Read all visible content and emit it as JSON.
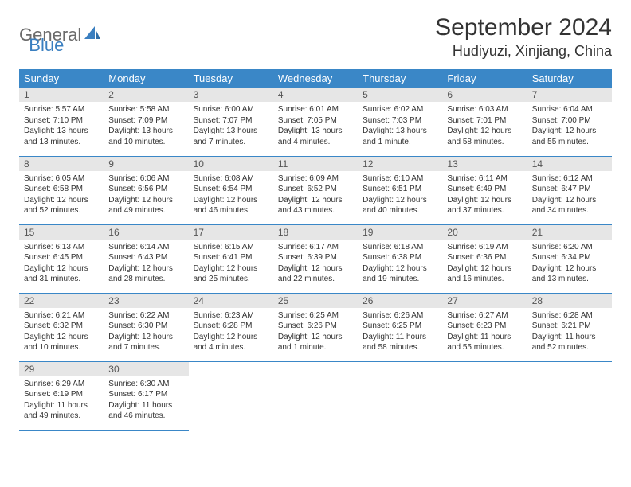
{
  "logo": {
    "text1": "General",
    "text2": "Blue"
  },
  "title": "September 2024",
  "location": "Hudiyuzi, Xinjiang, China",
  "colors": {
    "header_bg": "#3a87c7",
    "header_text": "#ffffff",
    "daynum_bg": "#e6e6e6",
    "border": "#3a87c7",
    "body_text": "#333333",
    "logo_gray": "#6b6b6b",
    "logo_blue": "#3a7fc0"
  },
  "day_headers": [
    "Sunday",
    "Monday",
    "Tuesday",
    "Wednesday",
    "Thursday",
    "Friday",
    "Saturday"
  ],
  "weeks": [
    [
      {
        "num": "1",
        "sunrise": "Sunrise: 5:57 AM",
        "sunset": "Sunset: 7:10 PM",
        "daylight1": "Daylight: 13 hours",
        "daylight2": "and 13 minutes."
      },
      {
        "num": "2",
        "sunrise": "Sunrise: 5:58 AM",
        "sunset": "Sunset: 7:09 PM",
        "daylight1": "Daylight: 13 hours",
        "daylight2": "and 10 minutes."
      },
      {
        "num": "3",
        "sunrise": "Sunrise: 6:00 AM",
        "sunset": "Sunset: 7:07 PM",
        "daylight1": "Daylight: 13 hours",
        "daylight2": "and 7 minutes."
      },
      {
        "num": "4",
        "sunrise": "Sunrise: 6:01 AM",
        "sunset": "Sunset: 7:05 PM",
        "daylight1": "Daylight: 13 hours",
        "daylight2": "and 4 minutes."
      },
      {
        "num": "5",
        "sunrise": "Sunrise: 6:02 AM",
        "sunset": "Sunset: 7:03 PM",
        "daylight1": "Daylight: 13 hours",
        "daylight2": "and 1 minute."
      },
      {
        "num": "6",
        "sunrise": "Sunrise: 6:03 AM",
        "sunset": "Sunset: 7:01 PM",
        "daylight1": "Daylight: 12 hours",
        "daylight2": "and 58 minutes."
      },
      {
        "num": "7",
        "sunrise": "Sunrise: 6:04 AM",
        "sunset": "Sunset: 7:00 PM",
        "daylight1": "Daylight: 12 hours",
        "daylight2": "and 55 minutes."
      }
    ],
    [
      {
        "num": "8",
        "sunrise": "Sunrise: 6:05 AM",
        "sunset": "Sunset: 6:58 PM",
        "daylight1": "Daylight: 12 hours",
        "daylight2": "and 52 minutes."
      },
      {
        "num": "9",
        "sunrise": "Sunrise: 6:06 AM",
        "sunset": "Sunset: 6:56 PM",
        "daylight1": "Daylight: 12 hours",
        "daylight2": "and 49 minutes."
      },
      {
        "num": "10",
        "sunrise": "Sunrise: 6:08 AM",
        "sunset": "Sunset: 6:54 PM",
        "daylight1": "Daylight: 12 hours",
        "daylight2": "and 46 minutes."
      },
      {
        "num": "11",
        "sunrise": "Sunrise: 6:09 AM",
        "sunset": "Sunset: 6:52 PM",
        "daylight1": "Daylight: 12 hours",
        "daylight2": "and 43 minutes."
      },
      {
        "num": "12",
        "sunrise": "Sunrise: 6:10 AM",
        "sunset": "Sunset: 6:51 PM",
        "daylight1": "Daylight: 12 hours",
        "daylight2": "and 40 minutes."
      },
      {
        "num": "13",
        "sunrise": "Sunrise: 6:11 AM",
        "sunset": "Sunset: 6:49 PM",
        "daylight1": "Daylight: 12 hours",
        "daylight2": "and 37 minutes."
      },
      {
        "num": "14",
        "sunrise": "Sunrise: 6:12 AM",
        "sunset": "Sunset: 6:47 PM",
        "daylight1": "Daylight: 12 hours",
        "daylight2": "and 34 minutes."
      }
    ],
    [
      {
        "num": "15",
        "sunrise": "Sunrise: 6:13 AM",
        "sunset": "Sunset: 6:45 PM",
        "daylight1": "Daylight: 12 hours",
        "daylight2": "and 31 minutes."
      },
      {
        "num": "16",
        "sunrise": "Sunrise: 6:14 AM",
        "sunset": "Sunset: 6:43 PM",
        "daylight1": "Daylight: 12 hours",
        "daylight2": "and 28 minutes."
      },
      {
        "num": "17",
        "sunrise": "Sunrise: 6:15 AM",
        "sunset": "Sunset: 6:41 PM",
        "daylight1": "Daylight: 12 hours",
        "daylight2": "and 25 minutes."
      },
      {
        "num": "18",
        "sunrise": "Sunrise: 6:17 AM",
        "sunset": "Sunset: 6:39 PM",
        "daylight1": "Daylight: 12 hours",
        "daylight2": "and 22 minutes."
      },
      {
        "num": "19",
        "sunrise": "Sunrise: 6:18 AM",
        "sunset": "Sunset: 6:38 PM",
        "daylight1": "Daylight: 12 hours",
        "daylight2": "and 19 minutes."
      },
      {
        "num": "20",
        "sunrise": "Sunrise: 6:19 AM",
        "sunset": "Sunset: 6:36 PM",
        "daylight1": "Daylight: 12 hours",
        "daylight2": "and 16 minutes."
      },
      {
        "num": "21",
        "sunrise": "Sunrise: 6:20 AM",
        "sunset": "Sunset: 6:34 PM",
        "daylight1": "Daylight: 12 hours",
        "daylight2": "and 13 minutes."
      }
    ],
    [
      {
        "num": "22",
        "sunrise": "Sunrise: 6:21 AM",
        "sunset": "Sunset: 6:32 PM",
        "daylight1": "Daylight: 12 hours",
        "daylight2": "and 10 minutes."
      },
      {
        "num": "23",
        "sunrise": "Sunrise: 6:22 AM",
        "sunset": "Sunset: 6:30 PM",
        "daylight1": "Daylight: 12 hours",
        "daylight2": "and 7 minutes."
      },
      {
        "num": "24",
        "sunrise": "Sunrise: 6:23 AM",
        "sunset": "Sunset: 6:28 PM",
        "daylight1": "Daylight: 12 hours",
        "daylight2": "and 4 minutes."
      },
      {
        "num": "25",
        "sunrise": "Sunrise: 6:25 AM",
        "sunset": "Sunset: 6:26 PM",
        "daylight1": "Daylight: 12 hours",
        "daylight2": "and 1 minute."
      },
      {
        "num": "26",
        "sunrise": "Sunrise: 6:26 AM",
        "sunset": "Sunset: 6:25 PM",
        "daylight1": "Daylight: 11 hours",
        "daylight2": "and 58 minutes."
      },
      {
        "num": "27",
        "sunrise": "Sunrise: 6:27 AM",
        "sunset": "Sunset: 6:23 PM",
        "daylight1": "Daylight: 11 hours",
        "daylight2": "and 55 minutes."
      },
      {
        "num": "28",
        "sunrise": "Sunrise: 6:28 AM",
        "sunset": "Sunset: 6:21 PM",
        "daylight1": "Daylight: 11 hours",
        "daylight2": "and 52 minutes."
      }
    ],
    [
      {
        "num": "29",
        "sunrise": "Sunrise: 6:29 AM",
        "sunset": "Sunset: 6:19 PM",
        "daylight1": "Daylight: 11 hours",
        "daylight2": "and 49 minutes."
      },
      {
        "num": "30",
        "sunrise": "Sunrise: 6:30 AM",
        "sunset": "Sunset: 6:17 PM",
        "daylight1": "Daylight: 11 hours",
        "daylight2": "and 46 minutes."
      },
      null,
      null,
      null,
      null,
      null
    ]
  ]
}
